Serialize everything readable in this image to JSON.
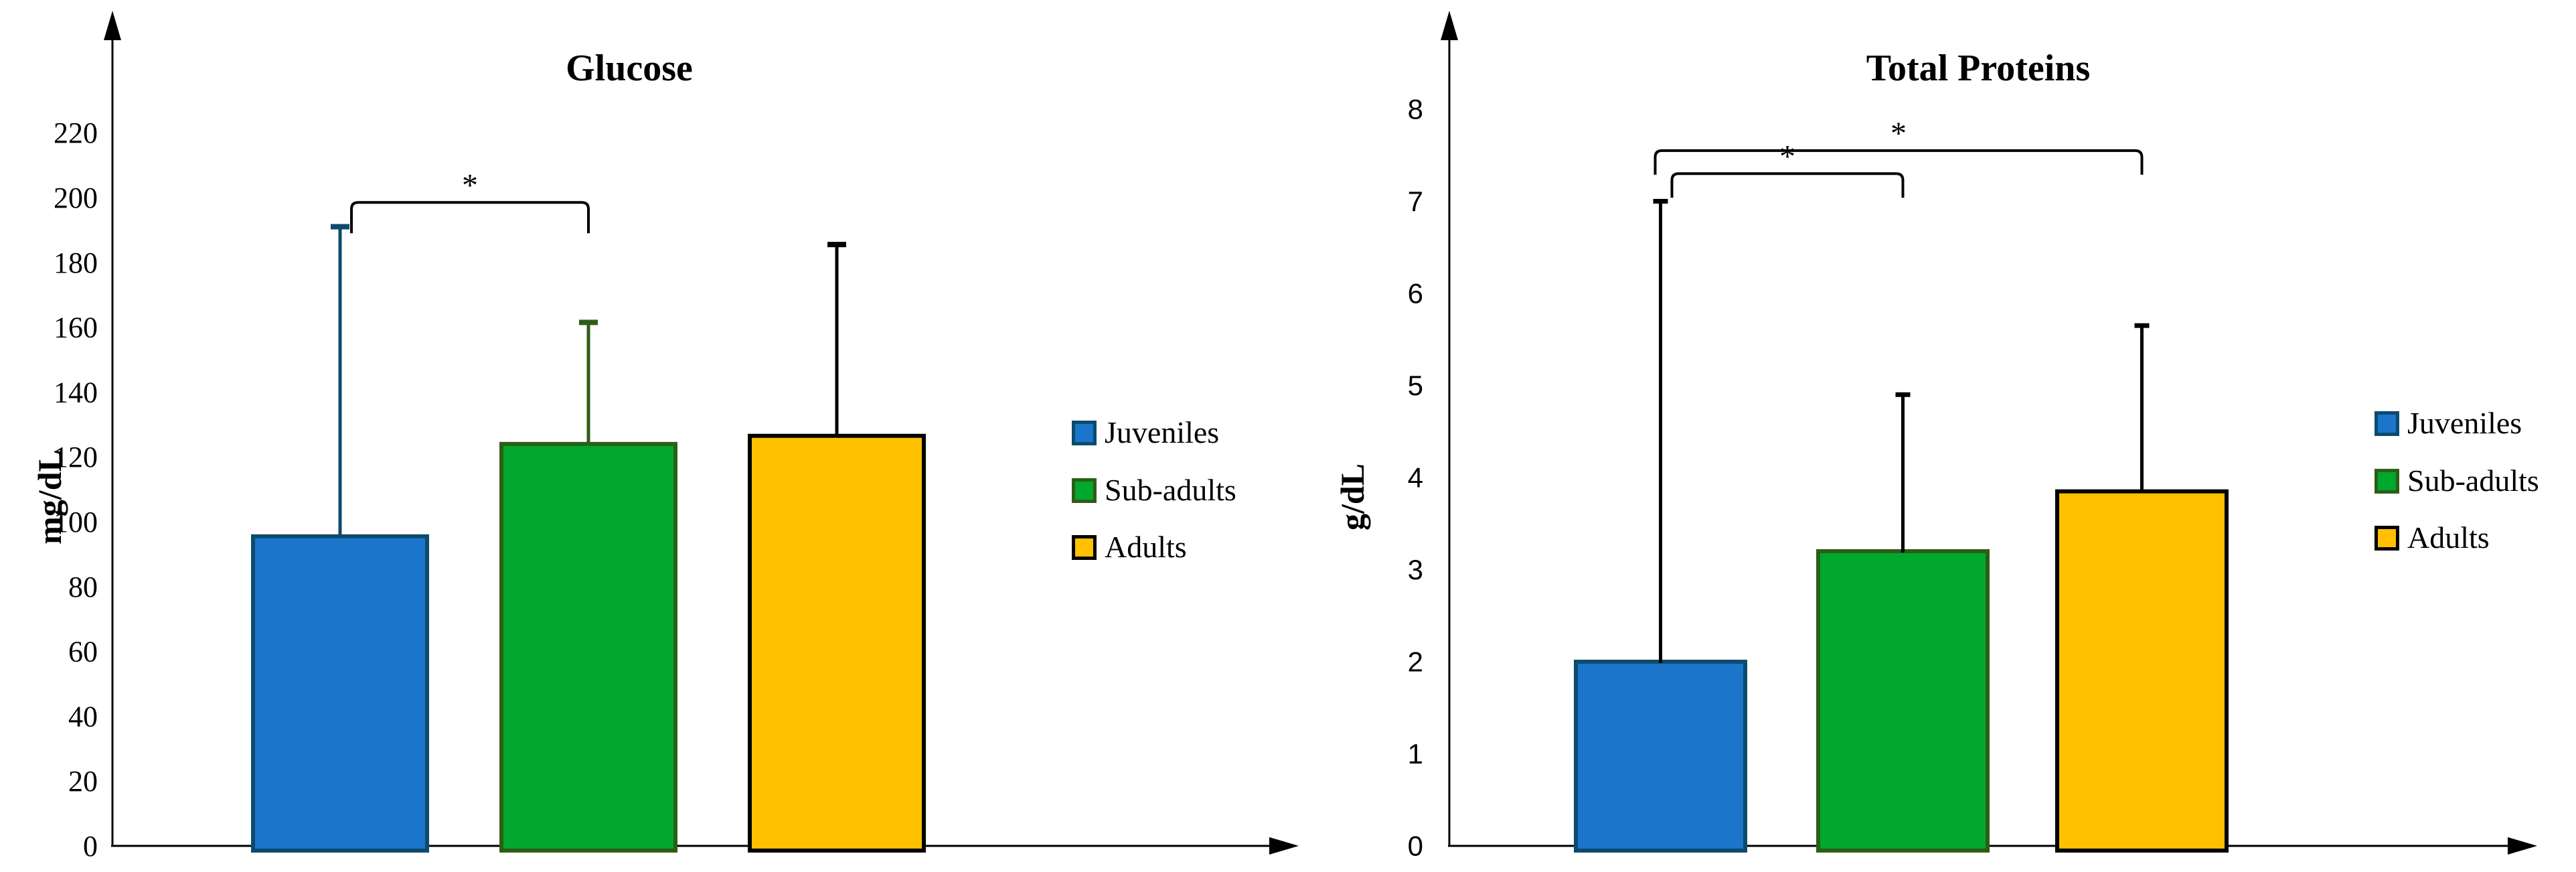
{
  "figure": {
    "background": "#ffffff"
  },
  "legend": {
    "items": [
      {
        "label": "Juveniles",
        "fill": "#1B75CA",
        "border": "#0D4B6D"
      },
      {
        "label": "Sub-adults",
        "fill": "#00A82D",
        "border": "#2D5E17"
      },
      {
        "label": "Adults",
        "fill": "#FFC000",
        "border": "#000000"
      }
    ]
  },
  "chart_data": [
    {
      "type": "bar",
      "title": "Glucose",
      "ylabel": "mg/dL",
      "xlabel": "",
      "categories": [
        "Juveniles",
        "Sub-adults",
        "Adults"
      ],
      "values": [
        95.5,
        124,
        126.5
      ],
      "error_top": [
        191,
        161.5,
        185.5
      ],
      "bar_colors": [
        "#1B75CA",
        "#00A82D",
        "#FFC000"
      ],
      "bar_borders": [
        "#0D4B6D",
        "#2D5E17",
        "#000000"
      ],
      "error_colors": [
        "#0D4B6D",
        "#2D5E17",
        "#000000"
      ],
      "yticks": [
        0,
        20,
        40,
        60,
        80,
        100,
        120,
        140,
        160,
        180,
        200,
        220
      ],
      "ylim": [
        0,
        235
      ],
      "grid": false,
      "legend_position": "right",
      "significance": [
        {
          "from": "Juveniles",
          "to": "Sub-adults",
          "at": 198.5,
          "label": "*"
        }
      ]
    },
    {
      "type": "bar",
      "title": "Total Proteins",
      "ylabel": "g/dL",
      "xlabel": "",
      "categories": [
        "Juveniles",
        "Sub-adults",
        "Adults"
      ],
      "values": [
        2.0,
        3.2,
        3.85
      ],
      "error_top": [
        7.0,
        4.9,
        5.65
      ],
      "bar_colors": [
        "#1B75CA",
        "#00A82D",
        "#FFC000"
      ],
      "bar_borders": [
        "#0D4B6D",
        "#2D5E17",
        "#000000"
      ],
      "error_colors": [
        "#000000",
        "#000000",
        "#000000"
      ],
      "yticks": [
        0,
        1,
        2,
        3,
        4,
        5,
        6,
        7,
        8
      ],
      "ylim": [
        0,
        8.75
      ],
      "grid": false,
      "legend_position": "right",
      "significance": [
        {
          "from": "Juveniles",
          "to": "Sub-adults",
          "at": 7.3,
          "label": "*"
        },
        {
          "from": "Juveniles",
          "to": "Adults",
          "at": 7.55,
          "label": "*"
        }
      ]
    }
  ]
}
